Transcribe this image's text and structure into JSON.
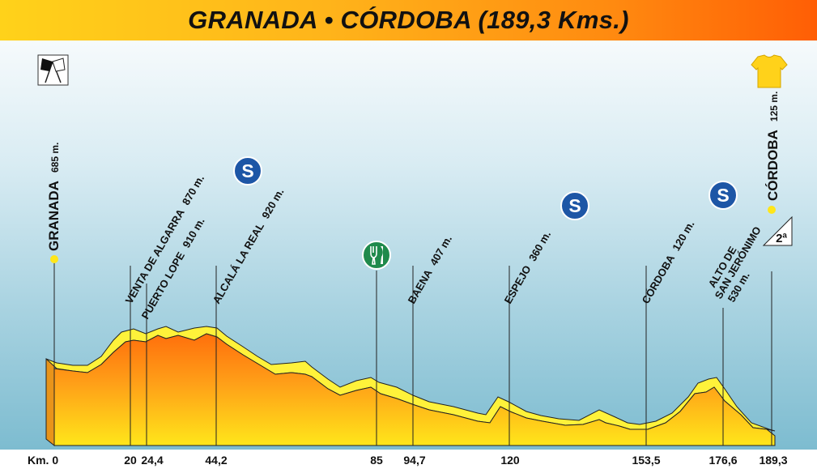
{
  "title": "GRANADA • CÓRDOBA (189,3 Kms.)",
  "km_axis": {
    "start_label": "Km. 0",
    "ticks": [
      "20",
      "24,4",
      "44,2",
      "85",
      "94,7",
      "120",
      "153,5",
      "176,6",
      "189,3"
    ]
  },
  "places": [
    {
      "name": "GRANADA",
      "alt": "685 m."
    },
    {
      "name": "VENTA DE ALGARRA",
      "alt": "870 m."
    },
    {
      "name": "PUERTO LOPE",
      "alt": "910 m."
    },
    {
      "name": "ALCALÁ LA REAL",
      "alt": "920 m."
    },
    {
      "name": "BAENA",
      "alt": "407 m."
    },
    {
      "name": "ESPEJO",
      "alt": "360 m."
    },
    {
      "name": "CÓRDOBA",
      "alt": "120 m."
    },
    {
      "name": "CÓRDOBA",
      "alt": "125 m."
    }
  ],
  "climb": {
    "line1": "ALTO DE",
    "line2": "SAN JERÓNIMO",
    "line3": "530 m.",
    "category": "2ª"
  },
  "icons": {
    "start": "start-flags-icon",
    "finish": "yellow-jersey-icon",
    "sprint": "sprint-s-icon",
    "feed": "feed-zone-cutlery-icon",
    "summit": "summit-marker-icon"
  },
  "sprint_letter": "S",
  "colors": {
    "header_left": "#ffd21a",
    "header_right": "#ff5e05",
    "profile_top": "#ff7a10",
    "profile_bottom": "#ffe61a",
    "edge_yellow": "#fff23a",
    "sprint_blue": "#1d56a6",
    "feed_green": "#1f8a4c",
    "jersey_yellow": "#ffd21a"
  }
}
